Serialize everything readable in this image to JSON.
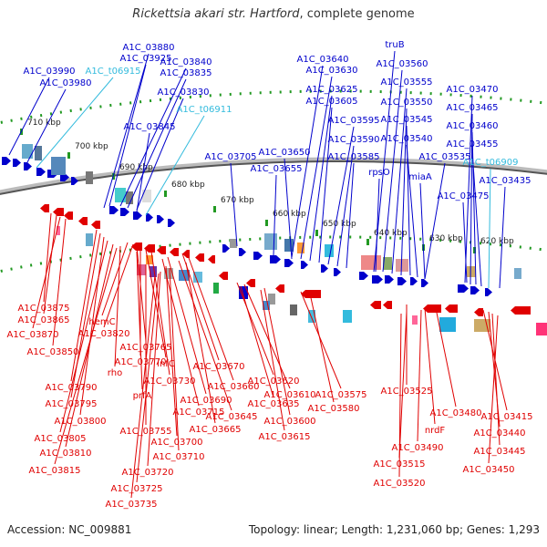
{
  "title": {
    "organism": "Rickettsia akari str. Hartford",
    "suffix": ", complete genome"
  },
  "footer": {
    "accession": "Accession: NC_009881",
    "summary": "Topology: linear; Length: 1,231,060 bp; Genes: 1,293"
  },
  "colors": {
    "forward": "#0000cc",
    "reverse": "#e00000",
    "trna": "#33bbdd",
    "scale": "#229922",
    "backbone": "#888888"
  },
  "scale_ticks": [
    "710 kbp",
    "700 kbp",
    "690 kbp",
    "680 kbp",
    "670 kbp",
    "660 kbp",
    "650 kbp",
    "640 kbp",
    "630 kbp",
    "620 kbp"
  ],
  "forward_labels": [
    "A1C_03880",
    "A1C_03925",
    "A1C_03990",
    "A1C_t06915",
    "A1C_03980",
    "A1C_03840",
    "A1C_03835",
    "A1C_03830",
    "A1C_t06911",
    "A1C_03845",
    "A1C_03705",
    "A1C_03650",
    "A1C_03655",
    "A1C_03640",
    "A1C_03630",
    "A1C_03625",
    "A1C_03605",
    "A1C_03595",
    "A1C_03590",
    "A1C_03585",
    "truB",
    "A1C_03560",
    "A1C_03555",
    "A1C_03550",
    "A1C_03545",
    "A1C_03540",
    "A1C_03535",
    "rpsO",
    "miaA",
    "A1C_03470",
    "A1C_03465",
    "A1C_03460",
    "A1C_03455",
    "A1C_t06909",
    "A1C_03435",
    "A1C_03475"
  ],
  "reverse_labels": [
    "A1C_03875",
    "A1C_03865",
    "A1C_03870",
    "A1C_03850",
    "hemC",
    "A1C_03820",
    "A1C_03765",
    "A1C_03770",
    "infC",
    "rho",
    "A1C_03730",
    "A1C_03670",
    "A1C_03660",
    "A1C_03620",
    "A1C_03610",
    "A1C_03575",
    "A1C_03525",
    "prfA",
    "A1C_03790",
    "A1C_03795",
    "A1C_03690",
    "A1C_03715",
    "A1C_03635",
    "A1C_03580",
    "A1C_03645",
    "A1C_03600",
    "A1C_03480",
    "A1C_03415",
    "A1C_03800",
    "A1C_03665",
    "A1C_03615",
    "nrdF",
    "A1C_03440",
    "A1C_03755",
    "A1C_03805",
    "A1C_03700",
    "A1C_03445",
    "A1C_03490",
    "A1C_03810",
    "A1C_03710",
    "A1C_03515",
    "A1C_03450",
    "A1C_03815",
    "A1C_03720",
    "A1C_03520",
    "A1C_03725",
    "A1C_03735"
  ]
}
